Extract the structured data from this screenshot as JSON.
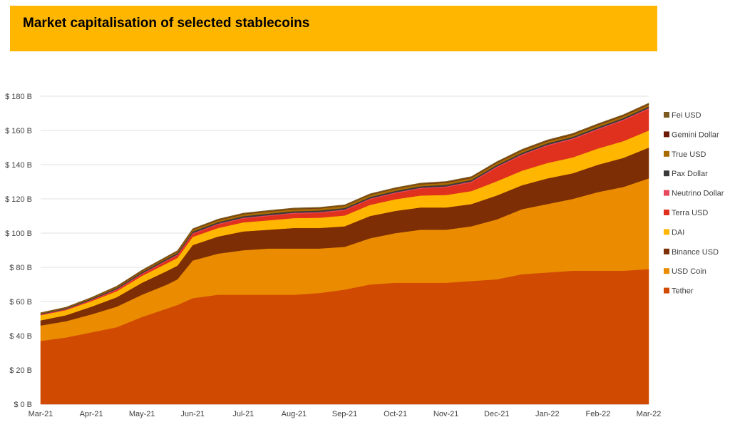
{
  "title": "Market capitalisation of selected stablecoins",
  "chart_data": {
    "type": "area",
    "stacked": true,
    "title": "Market capitalisation of selected stablecoins",
    "xlabel": "",
    "ylabel": "",
    "ylim": [
      0,
      180
    ],
    "y_ticks": [
      0,
      20,
      40,
      60,
      80,
      100,
      120,
      140,
      160,
      180
    ],
    "y_tick_labels": [
      "$ 0 B",
      "$ 20 B",
      "$ 40 B",
      "$ 60 B",
      "$ 80 B",
      "$ 100 B",
      "$ 120 B",
      "$ 140 B",
      "$ 160 B",
      "$ 180 B"
    ],
    "x_tick_labels": [
      "Mar-21",
      "Apr-21",
      "May-21",
      "Jun-21",
      "Jul-21",
      "Aug-21",
      "Sep-21",
      "Oct-21",
      "Nov-21",
      "Dec-21",
      "Jan-22",
      "Feb-22",
      "Mar-22"
    ],
    "x": [
      0,
      0.5,
      1,
      1.5,
      2,
      2.5,
      2.7,
      3,
      3.5,
      4,
      4.5,
      5,
      5.5,
      6,
      6.5,
      7,
      7.5,
      8,
      8.5,
      9,
      9.5,
      10,
      10.5,
      11,
      11.5,
      12
    ],
    "legend_position": "right",
    "series": [
      {
        "name": "Tether",
        "color": "#d04a02",
        "values": [
          37,
          39,
          42,
          45,
          51,
          56,
          58,
          62,
          64,
          64,
          64,
          64,
          65,
          67,
          70,
          71,
          71,
          71,
          72,
          73,
          76,
          77,
          78,
          78,
          78,
          79
        ]
      },
      {
        "name": "USD Coin",
        "color": "#eb8c00",
        "values": [
          9,
          9.5,
          10.5,
          12,
          13,
          14,
          15,
          22,
          24,
          26,
          27,
          27,
          26,
          25,
          27,
          29,
          31,
          31,
          32,
          35,
          38,
          40,
          42,
          46,
          49,
          53
        ]
      },
      {
        "name": "Binance USD",
        "color": "#7d2e04",
        "values": [
          3,
          3.5,
          4.5,
          5.5,
          7,
          8,
          8,
          9,
          10,
          11,
          11,
          12,
          12,
          12,
          13,
          13,
          13,
          13,
          13,
          14,
          14,
          15,
          15,
          16,
          17,
          18
        ]
      },
      {
        "name": "DAI",
        "color": "#ffb600",
        "values": [
          3,
          3,
          3.2,
          3.5,
          4,
          4.5,
          4.5,
          4.8,
          5,
          5.3,
          5.5,
          5.8,
          6,
          6.3,
          6.5,
          6.8,
          7,
          7.3,
          7.6,
          8.3,
          8.5,
          9,
          9.3,
          9.5,
          9.8,
          10
        ]
      },
      {
        "name": "Terra USD",
        "color": "#e0301e",
        "values": [
          0.2,
          0.3,
          0.5,
          0.8,
          1,
          1.5,
          1.6,
          1.8,
          2,
          2.2,
          2.5,
          2.6,
          2.8,
          3,
          3.2,
          3.5,
          4,
          4.5,
          5,
          8,
          9,
          10,
          10.5,
          11,
          12,
          12.5
        ]
      },
      {
        "name": "Neutrino Dollar",
        "color": "#e8485c",
        "values": [
          0.3,
          0.3,
          0.3,
          0.4,
          0.4,
          0.4,
          0.4,
          0.4,
          0.5,
          0.5,
          0.5,
          0.5,
          0.5,
          0.5,
          0.5,
          0.5,
          0.5,
          0.5,
          0.6,
          0.6,
          0.6,
          0.6,
          0.6,
          0.6,
          0.6,
          0.6
        ]
      },
      {
        "name": "Pax Dollar",
        "color": "#3a3a3a",
        "values": [
          0.4,
          0.5,
          0.6,
          0.7,
          0.8,
          0.9,
          0.9,
          0.9,
          0.9,
          0.9,
          0.9,
          0.9,
          0.9,
          0.9,
          0.9,
          0.9,
          0.9,
          0.9,
          0.9,
          0.9,
          0.9,
          0.9,
          0.9,
          0.9,
          0.9,
          0.9
        ]
      },
      {
        "name": "True USD",
        "color": "#a86b00",
        "values": [
          0.3,
          0.3,
          0.4,
          0.5,
          0.6,
          0.7,
          0.8,
          1,
          1.1,
          1.1,
          1.2,
          1.2,
          1.2,
          1.2,
          1.2,
          1.2,
          1.2,
          1.2,
          1.2,
          1.2,
          1.2,
          1.2,
          1.2,
          1.2,
          1.2,
          1.2
        ]
      },
      {
        "name": "Gemini Dollar",
        "color": "#6e1a08",
        "values": [
          0.1,
          0.1,
          0.1,
          0.2,
          0.2,
          0.2,
          0.2,
          0.2,
          0.2,
          0.2,
          0.2,
          0.2,
          0.2,
          0.2,
          0.2,
          0.2,
          0.2,
          0.3,
          0.3,
          0.3,
          0.3,
          0.3,
          0.3,
          0.3,
          0.3,
          0.3
        ]
      },
      {
        "name": "Fei USD",
        "color": "#7a5a1e",
        "values": [
          0.2,
          0.2,
          0.3,
          0.4,
          0.4,
          0.4,
          0.4,
          0.5,
          0.5,
          0.5,
          0.5,
          0.5,
          0.5,
          0.5,
          0.5,
          0.5,
          0.5,
          0.5,
          0.5,
          0.5,
          0.5,
          0.5,
          0.5,
          0.5,
          0.5,
          0.5
        ]
      }
    ]
  }
}
